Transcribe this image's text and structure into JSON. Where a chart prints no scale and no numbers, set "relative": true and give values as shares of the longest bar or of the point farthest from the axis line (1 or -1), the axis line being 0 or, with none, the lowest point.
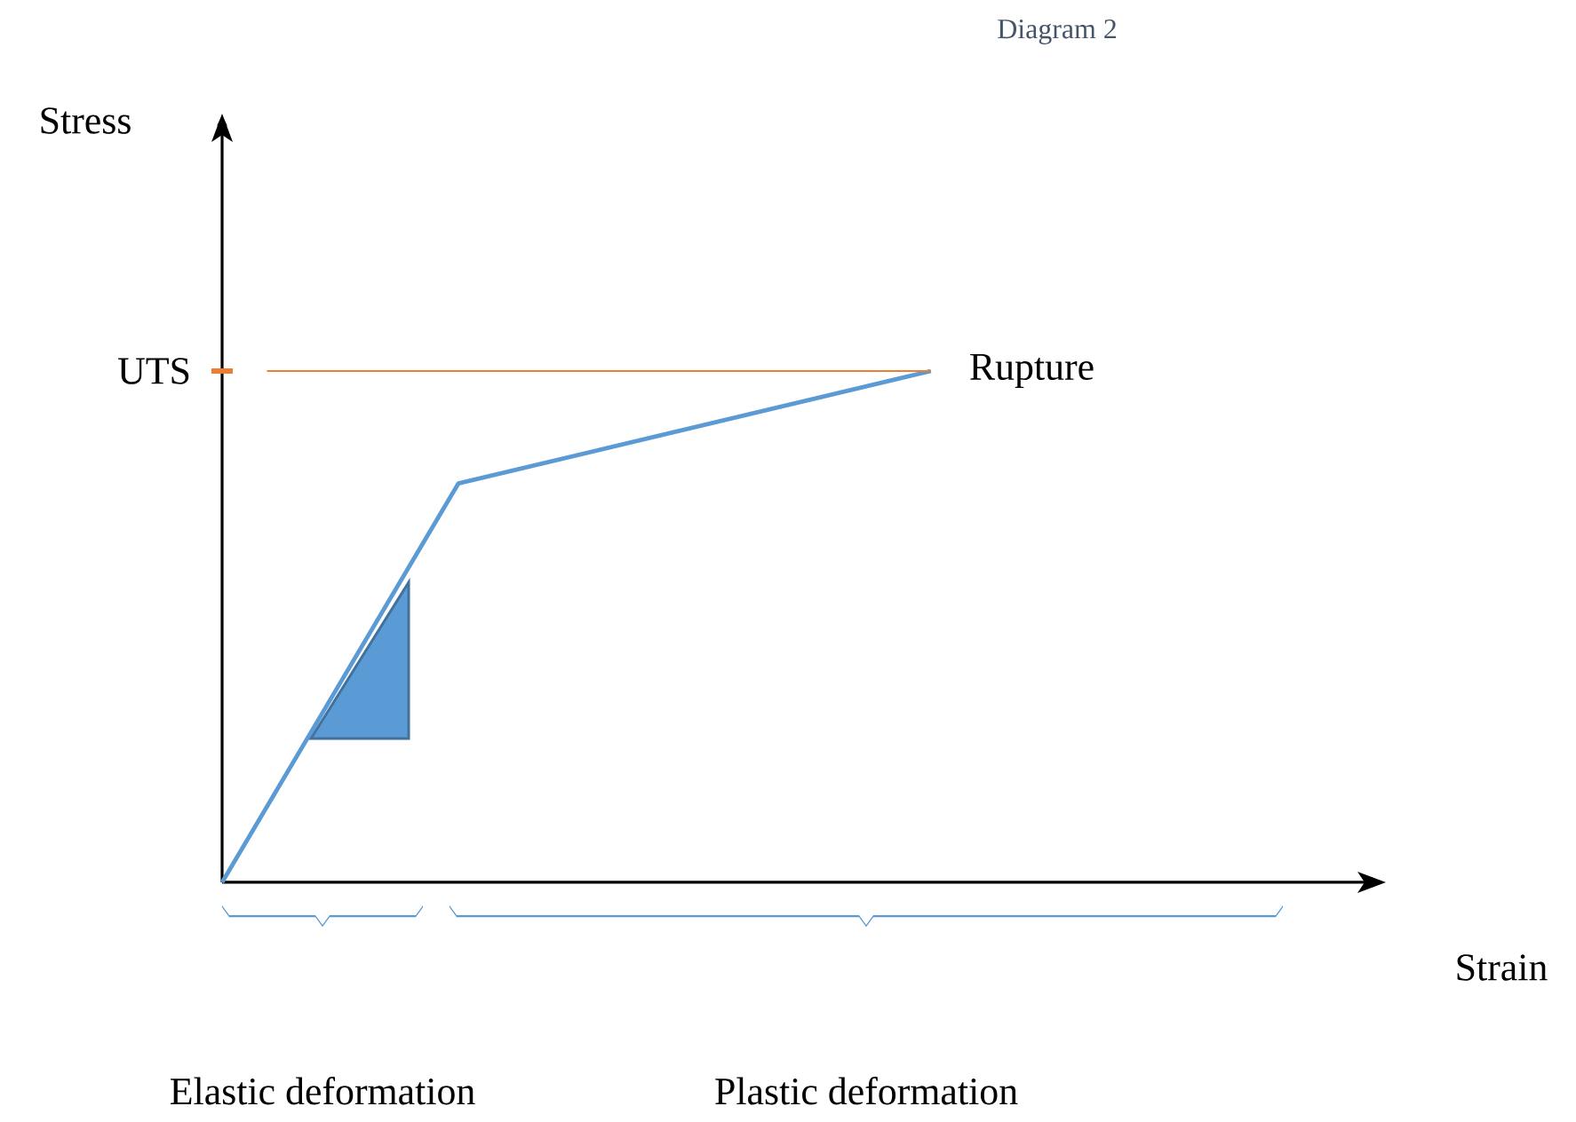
{
  "chart_data": {
    "type": "line",
    "title": "Diagram 2",
    "relative": true,
    "categories": [
      null,
      null,
      null,
      null
    ],
    "series": [
      {
        "color": "#5b9bd5",
        "values": [
          0,
          0.78,
          0.89,
          1
        ]
      }
    ],
    "ref_lines": [
      {
        "axis": "y",
        "value": 1,
        "label": "UTS",
        "color": "#ed7d31"
      }
    ],
    "annotations": [
      "Rupture",
      "Elastic deformation",
      "Plastic deformation",
      "Stress",
      "Strain"
    ],
    "marker": "none"
  }
}
